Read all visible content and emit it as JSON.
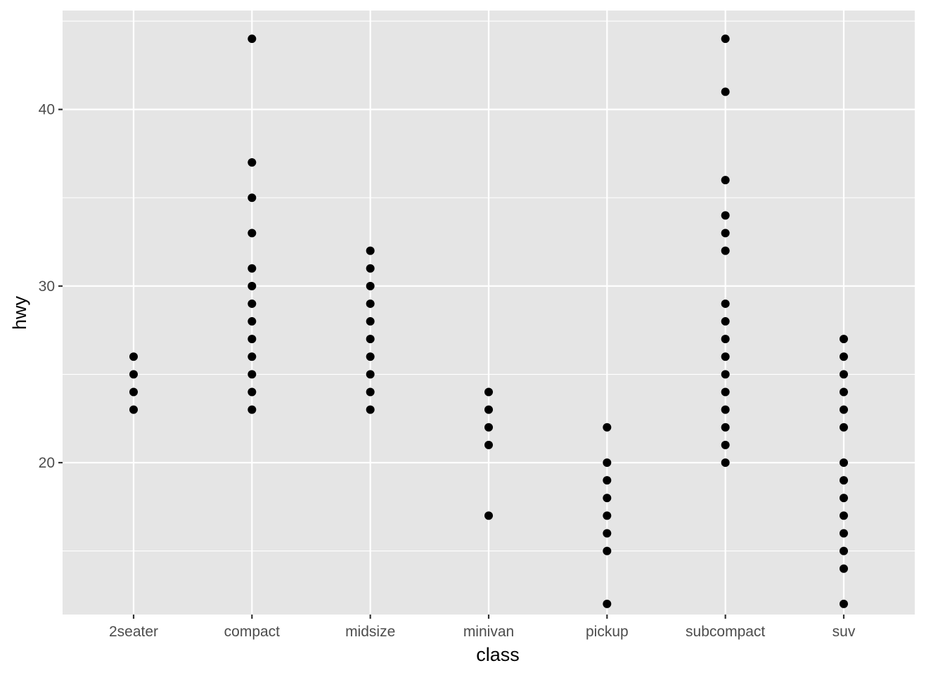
{
  "chart_data": {
    "type": "scatter",
    "xlabel": "class",
    "ylabel": "hwy",
    "categories": [
      "2seater",
      "compact",
      "midsize",
      "minivan",
      "pickup",
      "subcompact",
      "suv"
    ],
    "ylim": [
      11.4,
      45.6
    ],
    "y_ticks": [
      20,
      30,
      40
    ],
    "y_tick_labels": [
      "20",
      "30",
      "40"
    ],
    "y_minor_ticks": [
      15,
      25,
      35,
      45
    ],
    "grid": true,
    "point_color": "#000000",
    "panel_background": "#e5e5e5",
    "points": [
      {
        "class": "2seater",
        "hwy": [
          26,
          25,
          24,
          23
        ]
      },
      {
        "class": "compact",
        "hwy": [
          44,
          37,
          35,
          33,
          31,
          30,
          29,
          28,
          27,
          26,
          25,
          24,
          23
        ]
      },
      {
        "class": "midsize",
        "hwy": [
          32,
          31,
          30,
          29,
          28,
          27,
          26,
          25,
          24,
          23
        ]
      },
      {
        "class": "minivan",
        "hwy": [
          24,
          23,
          22,
          21,
          17
        ]
      },
      {
        "class": "pickup",
        "hwy": [
          22,
          20,
          19,
          18,
          17,
          16,
          15,
          12
        ]
      },
      {
        "class": "subcompact",
        "hwy": [
          44,
          41,
          36,
          34,
          33,
          32,
          29,
          28,
          27,
          26,
          25,
          24,
          23,
          22,
          21,
          20
        ]
      },
      {
        "class": "suv",
        "hwy": [
          27,
          26,
          25,
          24,
          23,
          22,
          20,
          19,
          18,
          17,
          16,
          15,
          14,
          12
        ]
      }
    ]
  }
}
